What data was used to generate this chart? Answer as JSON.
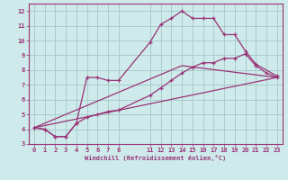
{
  "xlabel": "Windchill (Refroidissement éolien,°C)",
  "bg_color": "#ceeaea",
  "grid_color": "#aacccc",
  "line_color": "#993377",
  "xlim": [
    -0.5,
    23.5
  ],
  "ylim": [
    3.0,
    12.5
  ],
  "xticks": [
    0,
    1,
    2,
    3,
    4,
    5,
    6,
    7,
    8,
    11,
    12,
    13,
    14,
    15,
    16,
    17,
    18,
    19,
    20,
    21,
    22,
    23
  ],
  "yticks": [
    3,
    4,
    5,
    6,
    7,
    8,
    9,
    10,
    11,
    12
  ],
  "series1_x": [
    0,
    1,
    2,
    3,
    4,
    5,
    6,
    7,
    8,
    11,
    12,
    13,
    14,
    15,
    16,
    17,
    18,
    19,
    20,
    21,
    23
  ],
  "series1_y": [
    4.1,
    4.0,
    3.5,
    3.5,
    4.4,
    7.5,
    7.5,
    7.3,
    7.3,
    9.9,
    11.1,
    11.5,
    12.0,
    11.5,
    11.5,
    11.5,
    10.4,
    10.4,
    9.3,
    8.4,
    7.6
  ],
  "series2_x": [
    0,
    1,
    2,
    3,
    4,
    5,
    6,
    7,
    8,
    11,
    12,
    13,
    14,
    15,
    16,
    17,
    18,
    19,
    20,
    21,
    22,
    23
  ],
  "series2_y": [
    4.1,
    4.0,
    3.5,
    3.5,
    4.4,
    4.8,
    5.0,
    5.2,
    5.3,
    6.3,
    6.8,
    7.3,
    7.8,
    8.2,
    8.5,
    8.5,
    8.8,
    8.8,
    9.1,
    8.3,
    7.8,
    7.5
  ],
  "series3_x": [
    0,
    23
  ],
  "series3_y": [
    4.1,
    7.5
  ],
  "series4_x": [
    0,
    14,
    23
  ],
  "series4_y": [
    4.1,
    8.3,
    7.5
  ],
  "figsize": [
    3.2,
    2.0
  ],
  "dpi": 100
}
